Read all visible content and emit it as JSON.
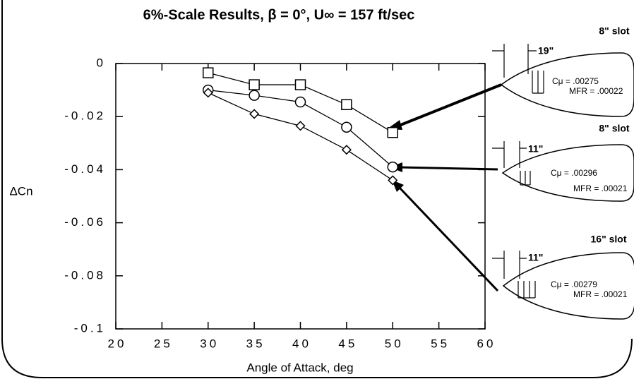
{
  "chart_data": {
    "type": "line",
    "title": "6%-Scale Results, β = 0°, U∞ = 157 ft/sec",
    "x_label": "Angle of Attack, deg",
    "y_label": "ΔCn",
    "x": [
      30,
      35,
      40,
      45,
      50
    ],
    "series": [
      {
        "marker": "square",
        "color": "#000000",
        "values": [
          -0.0035,
          -0.008,
          -0.008,
          -0.0155,
          -0.026
        ]
      },
      {
        "marker": "circle",
        "color": "#000000",
        "values": [
          -0.01,
          -0.012,
          -0.0145,
          -0.024,
          -0.039
        ]
      },
      {
        "marker": "diamond",
        "color": "#000000",
        "values": [
          -0.011,
          -0.019,
          -0.0235,
          -0.0325,
          -0.044
        ]
      }
    ],
    "xlim": [
      20,
      60
    ],
    "xticks": [
      20,
      25,
      30,
      35,
      40,
      45,
      50,
      55,
      60
    ],
    "ylim": [
      -0.1,
      0
    ],
    "yticks": [
      0,
      -0.02,
      -0.04,
      -0.06,
      -0.08,
      -0.1
    ],
    "annotations": [
      {
        "slot": "8\" slot",
        "dimension": "19\"",
        "cmu": "Cμ = .00275",
        "mfr": "MFR = .00022"
      },
      {
        "slot": "8\" slot",
        "dimension": "11\"",
        "cmu": "Cμ = .00296",
        "mfr": "MFR = .00021"
      },
      {
        "slot": "16\" slot",
        "dimension": "11\"",
        "cmu": "Cμ = .00279",
        "mfr": "MFR = .00021"
      }
    ]
  }
}
